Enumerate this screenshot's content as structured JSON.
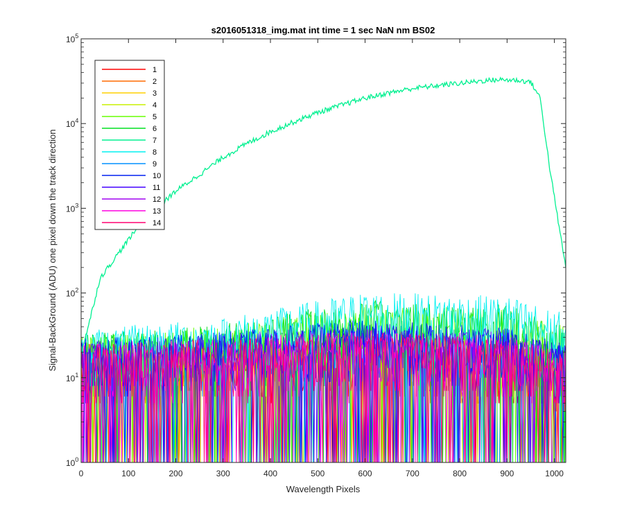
{
  "chart_data": {
    "type": "line",
    "title": "s2016051318_img.mat int time = 1 sec  NaN nm BS02",
    "xlabel": "Wavelength Pixels",
    "ylabel": "Signal-BackGround (ADU) one pixel down the track direction",
    "xlim": [
      0,
      1024
    ],
    "ylim": [
      1,
      100000
    ],
    "yscale": "log",
    "grid": false,
    "legend_position": "top-left",
    "x_ticks": [
      0,
      100,
      200,
      300,
      400,
      500,
      600,
      700,
      800,
      900,
      1000
    ],
    "y_ticks": [
      {
        "value": 1,
        "base": "10",
        "exp": "0"
      },
      {
        "value": 10,
        "base": "10",
        "exp": "1"
      },
      {
        "value": 100,
        "base": "10",
        "exp": "2"
      },
      {
        "value": 1000,
        "base": "10",
        "exp": "3"
      },
      {
        "value": 10000,
        "base": "10",
        "exp": "4"
      },
      {
        "value": 100000,
        "base": "10",
        "exp": "5"
      }
    ],
    "series": [
      {
        "name": "1",
        "color": "#ff0000",
        "envelope": {
          "x": [
            0,
            300,
            600,
            900,
            1024
          ],
          "y": [
            12,
            12,
            14,
            12,
            10
          ]
        }
      },
      {
        "name": "2",
        "color": "#ff6a00",
        "envelope": {
          "x": [
            0,
            300,
            600,
            900,
            1024
          ],
          "y": [
            12,
            13,
            15,
            13,
            10
          ]
        }
      },
      {
        "name": "3",
        "color": "#ffd000",
        "envelope": {
          "x": [
            0,
            300,
            600,
            900,
            1024
          ],
          "y": [
            12,
            13,
            16,
            13,
            10
          ]
        }
      },
      {
        "name": "4",
        "color": "#c8f000",
        "envelope": {
          "x": [
            0,
            300,
            600,
            900,
            1024
          ],
          "y": [
            13,
            14,
            18,
            14,
            11
          ]
        }
      },
      {
        "name": "5",
        "color": "#66ff00",
        "envelope": {
          "x": [
            0,
            300,
            600,
            900,
            1024
          ],
          "y": [
            15,
            20,
            35,
            32,
            20
          ]
        }
      },
      {
        "name": "6",
        "color": "#00e020",
        "envelope": {
          "x": [
            0,
            300,
            600,
            900,
            1024
          ],
          "y": [
            16,
            22,
            40,
            36,
            22
          ]
        }
      },
      {
        "name": "7",
        "color": "#00f090",
        "line": {
          "x": [
            0,
            15,
            40,
            80,
            120,
            160,
            200,
            250,
            300,
            350,
            400,
            450,
            500,
            550,
            600,
            650,
            700,
            750,
            800,
            850,
            880,
            920,
            950,
            970,
            990,
            1010,
            1024
          ],
          "y": [
            20,
            40,
            150,
            300,
            600,
            1000,
            1600,
            2500,
            4000,
            5800,
            8000,
            10500,
            13500,
            16500,
            20000,
            23000,
            26000,
            28000,
            30000,
            32000,
            33000,
            32500,
            31000,
            20000,
            3000,
            600,
            200
          ]
        }
      },
      {
        "name": "8",
        "color": "#00f0f0",
        "envelope": {
          "x": [
            0,
            300,
            600,
            900,
            1024
          ],
          "y": [
            18,
            25,
            50,
            45,
            28
          ]
        }
      },
      {
        "name": "9",
        "color": "#0090ff",
        "envelope": {
          "x": [
            0,
            300,
            600,
            900,
            1024
          ],
          "y": [
            14,
            16,
            22,
            18,
            12
          ]
        }
      },
      {
        "name": "10",
        "color": "#0020f0",
        "envelope": {
          "x": [
            0,
            300,
            600,
            900,
            1024
          ],
          "y": [
            14,
            17,
            24,
            19,
            12
          ]
        }
      },
      {
        "name": "11",
        "color": "#4400ff",
        "envelope": {
          "x": [
            0,
            300,
            600,
            900,
            1024
          ],
          "y": [
            13,
            16,
            22,
            18,
            12
          ]
        }
      },
      {
        "name": "12",
        "color": "#a000f0",
        "envelope": {
          "x": [
            0,
            300,
            600,
            900,
            1024
          ],
          "y": [
            13,
            15,
            20,
            16,
            11
          ]
        }
      },
      {
        "name": "13",
        "color": "#ff00e0",
        "envelope": {
          "x": [
            0,
            300,
            600,
            900,
            1024
          ],
          "y": [
            12,
            14,
            18,
            15,
            10
          ]
        }
      },
      {
        "name": "14",
        "color": "#ff0070",
        "envelope": {
          "x": [
            0,
            300,
            600,
            900,
            1024
          ],
          "y": [
            12,
            14,
            17,
            14,
            10
          ]
        }
      }
    ]
  }
}
